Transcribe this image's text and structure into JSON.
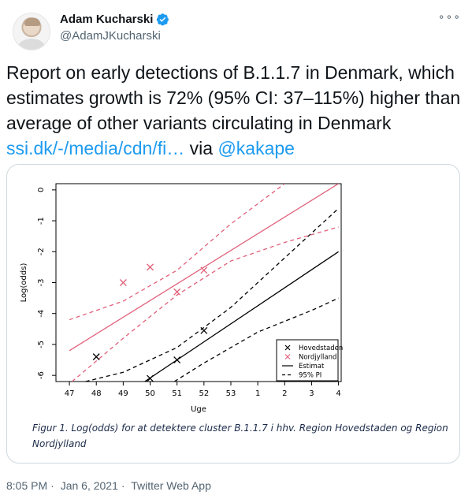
{
  "author": {
    "name": "Adam Kucharski",
    "handle": "@AdamJKucharski"
  },
  "icons": {
    "more": "more-options-icon",
    "verified": "verified-badge-icon",
    "avatar": "user-avatar"
  },
  "tweet": {
    "text_main": "Report on early detections of B.1.1.7 in Denmark, which estimates growth is 72% (95% CI: 37–115%) higher than average of other variants circulating in Denmark",
    "link": "ssi.dk/-/media/cdn/fi…",
    "via": " via ",
    "mention": "@kakape"
  },
  "figure": {
    "caption": "Figur 1. Log(odds) for at detektere cluster B.1.1.7 i hhv. Region Hovedstaden og Region Nordjylland"
  },
  "chart_data": {
    "type": "scatter",
    "xlabel": "Uge",
    "ylabel": "Log(odds)",
    "x_ticks": [
      "47",
      "48",
      "49",
      "50",
      "51",
      "52",
      "53",
      "1",
      "2",
      "3",
      "4"
    ],
    "y_ticks": [
      "0",
      "-1",
      "-2",
      "-3",
      "-4",
      "-5",
      "-6"
    ],
    "ylim": [
      -6.2,
      0.2
    ],
    "legend_position": "bottom-right",
    "legend": [
      {
        "label": "Hovedstaden",
        "symbol": "x",
        "color": "#000000"
      },
      {
        "label": "Nordjylland",
        "symbol": "x",
        "color": "#e0607a"
      },
      {
        "label": "Estimat",
        "symbol": "solid",
        "color": "#000000"
      },
      {
        "label": "95% PI",
        "symbol": "dashed",
        "color": "#000000"
      }
    ],
    "series": [
      {
        "name": "Hovedstaden",
        "color": "#000000",
        "points": [
          [
            1,
            -5.4
          ],
          [
            3,
            -6.1
          ],
          [
            4,
            -5.5
          ],
          [
            5,
            -4.55
          ]
        ],
        "estimate": [
          [
            2.8,
            -6.2
          ],
          [
            10,
            -2.0
          ]
        ],
        "pi_upper": [
          [
            0.6,
            -6.2
          ],
          [
            2,
            -5.9
          ],
          [
            4,
            -5.1
          ],
          [
            6,
            -3.8
          ],
          [
            8,
            -2.2
          ],
          [
            10,
            -0.6
          ]
        ],
        "pi_lower": [
          [
            3.9,
            -6.2
          ],
          [
            5,
            -5.6
          ],
          [
            7,
            -4.6
          ],
          [
            9,
            -3.9
          ],
          [
            10,
            -3.5
          ]
        ]
      },
      {
        "name": "Nordjylland",
        "color": "#e0607a",
        "points": [
          [
            2,
            -3.0
          ],
          [
            3,
            -2.5
          ],
          [
            4,
            -3.3
          ],
          [
            5,
            -2.6
          ]
        ],
        "estimate": [
          [
            0,
            -5.2
          ],
          [
            10,
            0.2
          ]
        ],
        "pi_upper": [
          [
            0,
            -4.2
          ],
          [
            2,
            -3.6
          ],
          [
            4,
            -2.6
          ],
          [
            6,
            -1.1
          ],
          [
            8,
            0.2
          ]
        ],
        "pi_lower": [
          [
            0.1,
            -6.2
          ],
          [
            2,
            -4.8
          ],
          [
            4,
            -3.4
          ],
          [
            6,
            -2.3
          ],
          [
            8,
            -1.7
          ],
          [
            10,
            -1.2
          ]
        ]
      }
    ]
  },
  "footer": {
    "time": "8:05 PM",
    "sep1": "·",
    "date": "Jan 6, 2021",
    "sep2": "·",
    "source": "Twitter Web App"
  }
}
